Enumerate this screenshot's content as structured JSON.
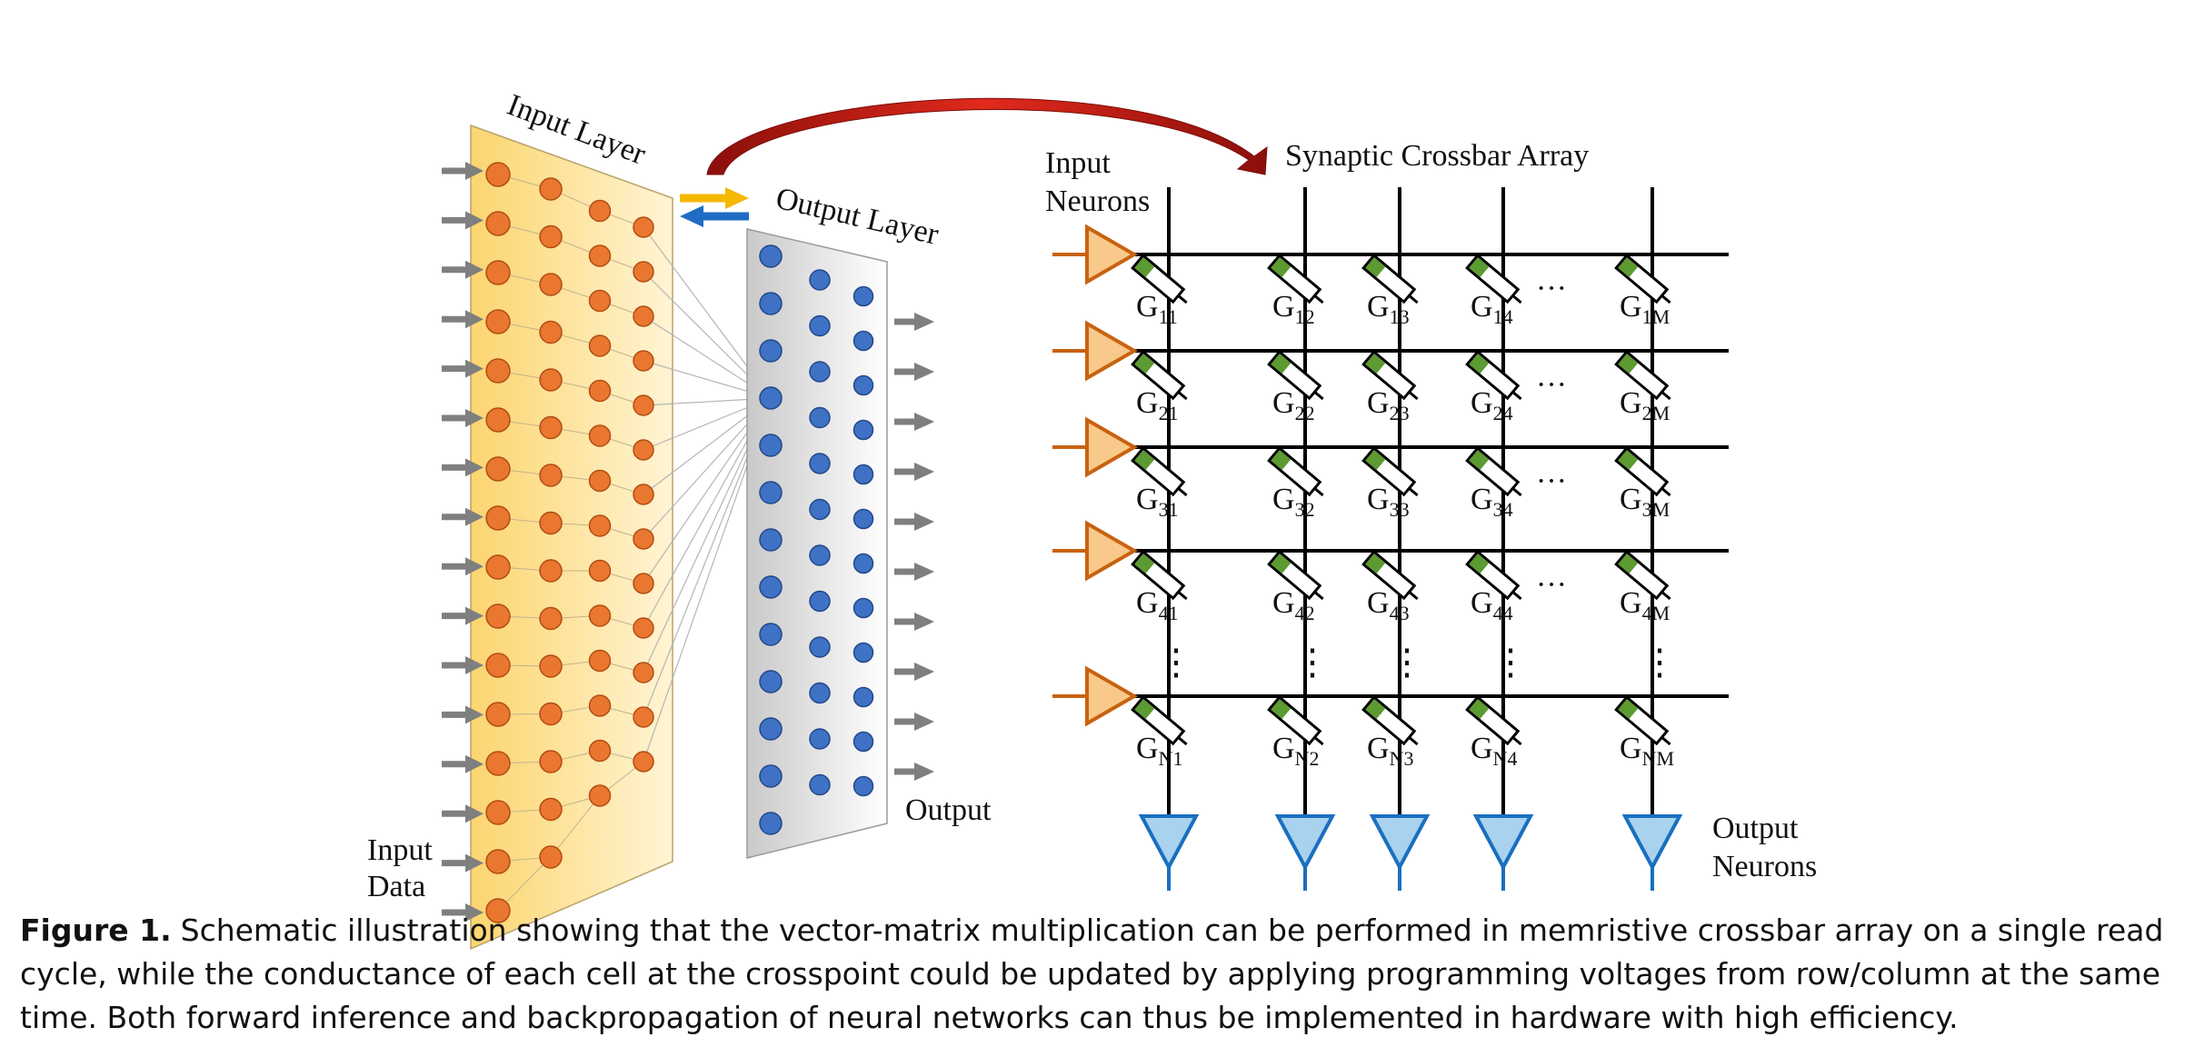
{
  "colors": {
    "input_neuron": "#e9772f",
    "input_neuron_stroke": "#b24d12",
    "input_panel_light": "#fff4d4",
    "input_panel_dark": "#fcd56f",
    "output_neuron": "#3f72c4",
    "output_neuron_stroke": "#23488a",
    "output_panel_light": "#ffffff",
    "output_panel_dark": "#c9c9c9",
    "arrow_gray": "#7f7f7f",
    "curved_arrow": "#d01c14",
    "arrow_forward": "#f5b800",
    "arrow_backward": "#1f6cc4",
    "line": "#000000",
    "amp_in_fill": "#f8c98a",
    "amp_in_stroke": "#c8620f",
    "amp_out_fill": "#a9d2ee",
    "amp_out_stroke": "#1a6fc0",
    "memristor_green": "#5c9a32"
  },
  "labels": {
    "input_layer": "Input Layer",
    "output_layer": "Output Layer",
    "input_data_1": "Input",
    "input_data_2": "Data",
    "output": "Output",
    "synaptic_crossbar": "Synaptic Crossbar Array",
    "input_neurons_1": "Input",
    "input_neurons_2": "Neurons",
    "output_neurons_1": "Output",
    "output_neurons_2": "Neurons",
    "ellipsis_h": "···",
    "ellipsis_v": "⋮"
  },
  "crossbar": {
    "row_subscripts": [
      "1",
      "2",
      "3",
      "4",
      "N"
    ],
    "col_subscripts": [
      "1",
      "2",
      "3",
      "4",
      "M"
    ],
    "symbol": "G"
  },
  "caption": {
    "label": "Figure 1.",
    "text": "Schematic illustration showing that the vector-matrix multiplication can be performed in memristive crossbar array on a single read cycle, while the conductance of each cell at the crosspoint could be updated by applying programming voltages from row/column at the same time. Both forward inference and backpropagation of neural networks can thus be implemented in hardware with high efficiency."
  }
}
